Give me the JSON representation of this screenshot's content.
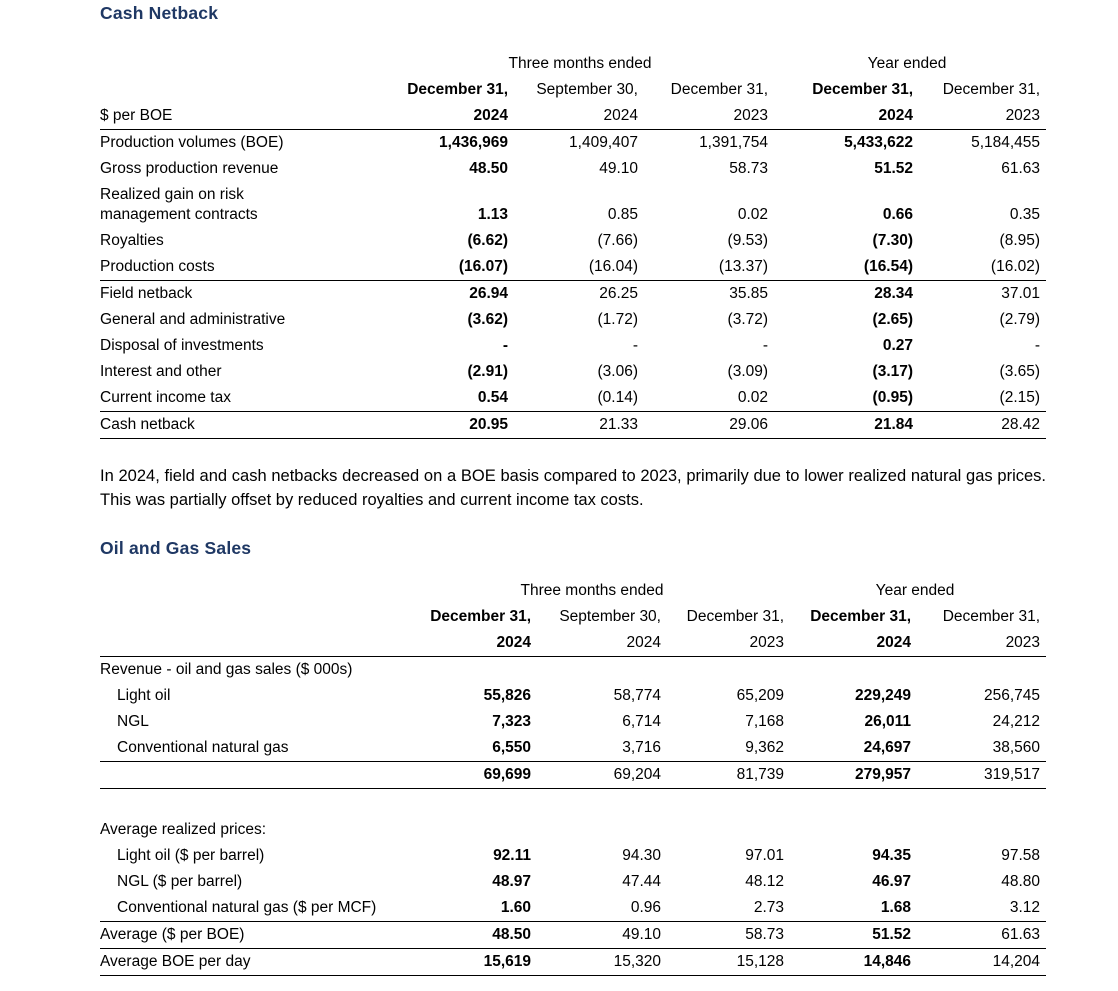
{
  "page": {
    "title1": "Cash Netback",
    "title2": "Oil and Gas Sales",
    "commentary": "In 2024, field and cash netbacks decreased on a BOE basis compared to 2023, primarily due to lower realized natural gas prices. This was partially offset by reduced royalties and current income tax costs."
  },
  "colors": {
    "heading": "#1F3864",
    "text": "#000000",
    "rule": "#000000"
  },
  "cash_netback_table": {
    "group_headers": [
      {
        "label": "Three months ended",
        "span": 3
      },
      {
        "label": "Year ended",
        "span": 2
      }
    ],
    "date_headers": [
      "December 31,",
      "September 30,",
      "December 31,",
      "December 31,",
      "December 31,"
    ],
    "year_headers": [
      "2024",
      "2024",
      "2023",
      "2024",
      "2023"
    ],
    "row_label_header": "$ per BOE",
    "bold_columns": [
      1,
      4
    ],
    "rows": [
      {
        "label": "Production volumes (BOE)",
        "values": [
          "1,436,969",
          "1,409,407",
          "1,391,754",
          "5,433,622",
          "5,184,455"
        ]
      },
      {
        "label": "Gross production revenue",
        "values": [
          "48.50",
          "49.10",
          "58.73",
          "51.52",
          "61.63"
        ]
      },
      {
        "label": "Realized gain on risk\nmanagement contracts",
        "values": [
          "1.13",
          "0.85",
          "0.02",
          "0.66",
          "0.35"
        ]
      },
      {
        "label": "Royalties",
        "values": [
          "(6.62)",
          "(7.66)",
          "(9.53)",
          "(7.30)",
          "(8.95)"
        ]
      },
      {
        "label": "Production costs",
        "rule": true,
        "values": [
          "(16.07)",
          "(16.04)",
          "(13.37)",
          "(16.54)",
          "(16.02)"
        ]
      },
      {
        "label": "Field netback",
        "values": [
          "26.94",
          "26.25",
          "35.85",
          "28.34",
          "37.01"
        ]
      },
      {
        "label": "General and administrative",
        "values": [
          "(3.62)",
          "(1.72)",
          "(3.72)",
          "(2.65)",
          "(2.79)"
        ]
      },
      {
        "label": "Disposal of investments",
        "values": [
          "-",
          "-",
          "-",
          "0.27",
          "-"
        ]
      },
      {
        "label": "Interest and other",
        "values": [
          "(2.91)",
          "(3.06)",
          "(3.09)",
          "(3.17)",
          "(3.65)"
        ]
      },
      {
        "label": "Current income tax",
        "rule": true,
        "values": [
          "0.54",
          "(0.14)",
          "0.02",
          "(0.95)",
          "(2.15)"
        ]
      },
      {
        "label": "Cash netback",
        "rule": true,
        "values": [
          "20.95",
          "21.33",
          "29.06",
          "21.84",
          "28.42"
        ]
      }
    ]
  },
  "oil_gas_table": {
    "group_headers": [
      {
        "label": "Three months ended",
        "span": 3
      },
      {
        "label": "Year ended",
        "span": 2
      }
    ],
    "date_headers": [
      "December 31,",
      "September 30,",
      "December 31,",
      "December 31,",
      "December 31,"
    ],
    "year_headers": [
      "2024",
      "2024",
      "2023",
      "2024",
      "2023"
    ],
    "row_label_header": "",
    "bold_columns": [
      1,
      4
    ],
    "rows": [
      {
        "label": "Revenue - oil and gas sales ($ 000s)",
        "values": []
      },
      {
        "label": "Light oil",
        "indent": true,
        "values": [
          "55,826",
          "58,774",
          "65,209",
          "229,249",
          "256,745"
        ]
      },
      {
        "label": "NGL",
        "indent": true,
        "values": [
          "7,323",
          "6,714",
          "7,168",
          "26,011",
          "24,212"
        ]
      },
      {
        "label": "Conventional natural gas",
        "indent": true,
        "rule": true,
        "values": [
          "6,550",
          "3,716",
          "9,362",
          "24,697",
          "38,560"
        ]
      },
      {
        "label": "",
        "rule": true,
        "values": [
          "69,699",
          "69,204",
          "81,739",
          "279,957",
          "319,517"
        ]
      },
      {
        "spacer": true
      },
      {
        "label": "Average realized prices:",
        "values": []
      },
      {
        "label": "Light oil ($ per barrel)",
        "indent": true,
        "values": [
          "92.11",
          "94.30",
          "97.01",
          "94.35",
          "97.58"
        ]
      },
      {
        "label": "NGL ($ per barrel)",
        "indent": true,
        "values": [
          "48.97",
          "47.44",
          "48.12",
          "46.97",
          "48.80"
        ]
      },
      {
        "label": "Conventional natural gas ($ per MCF)",
        "indent": true,
        "rule": true,
        "values": [
          "1.60",
          "0.96",
          "2.73",
          "1.68",
          "3.12"
        ]
      },
      {
        "label": "Average ($ per BOE)",
        "rule": true,
        "values": [
          "48.50",
          "49.10",
          "58.73",
          "51.52",
          "61.63"
        ]
      },
      {
        "label": "Average BOE per day",
        "rule": true,
        "values": [
          "15,619",
          "15,320",
          "15,128",
          "14,846",
          "14,204"
        ]
      }
    ]
  }
}
